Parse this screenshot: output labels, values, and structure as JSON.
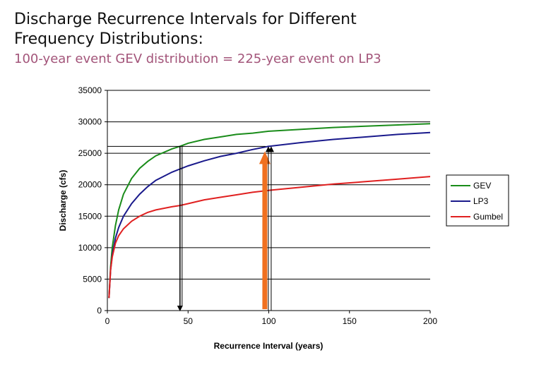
{
  "header": {
    "title": "Discharge Recurrence Intervals for Different Frequency Distributions:",
    "subtitle": "100-year event GEV distribution = 225-year event on LP3"
  },
  "chart_data": {
    "type": "line",
    "xlabel": "Recurrence Interval (years)",
    "ylabel": "Discharge (cfs)",
    "xlim": [
      0,
      200
    ],
    "ylim": [
      0,
      35000
    ],
    "xticks": [
      0,
      50,
      100,
      150,
      200
    ],
    "yticks": [
      0,
      5000,
      10000,
      15000,
      20000,
      25000,
      30000,
      35000
    ],
    "grid": "horizontal",
    "legend_position": "right",
    "series": [
      {
        "name": "GEV",
        "color": "#1a8c1a",
        "x": [
          1,
          2,
          3,
          5,
          7,
          10,
          15,
          20,
          25,
          30,
          40,
          45,
          50,
          60,
          70,
          80,
          90,
          100,
          120,
          140,
          160,
          180,
          200
        ],
        "y": [
          2000,
          7000,
          10000,
          13500,
          16000,
          18500,
          21000,
          22600,
          23700,
          24600,
          25700,
          26100,
          26600,
          27200,
          27600,
          28000,
          28200,
          28500,
          28800,
          29100,
          29300,
          29500,
          29700
        ]
      },
      {
        "name": "LP3",
        "color": "#1a1a8c",
        "x": [
          1,
          2,
          3,
          5,
          7,
          10,
          15,
          20,
          25,
          30,
          40,
          45,
          50,
          60,
          70,
          80,
          90,
          100,
          120,
          140,
          160,
          180,
          200
        ],
        "y": [
          2000,
          6500,
          8800,
          11500,
          13200,
          15000,
          17000,
          18500,
          19700,
          20700,
          22000,
          22500,
          23000,
          23800,
          24500,
          25000,
          25600,
          26100,
          26700,
          27200,
          27600,
          28000,
          28300
        ]
      },
      {
        "name": "Gumbel",
        "color": "#e02020",
        "x": [
          1,
          2,
          3,
          5,
          7,
          10,
          15,
          20,
          25,
          30,
          40,
          45,
          50,
          60,
          70,
          80,
          90,
          100,
          120,
          140,
          160,
          180,
          200
        ],
        "y": [
          2000,
          6500,
          8500,
          10700,
          11900,
          13000,
          14200,
          15000,
          15600,
          16000,
          16500,
          16700,
          17000,
          17600,
          18000,
          18400,
          18800,
          19100,
          19600,
          20100,
          20500,
          20900,
          21300
        ]
      }
    ],
    "annotations": {
      "reference_discharge": 26100,
      "gev_interval": 45,
      "lp3_interval": 98,
      "arrow_color": "#f07020"
    }
  }
}
